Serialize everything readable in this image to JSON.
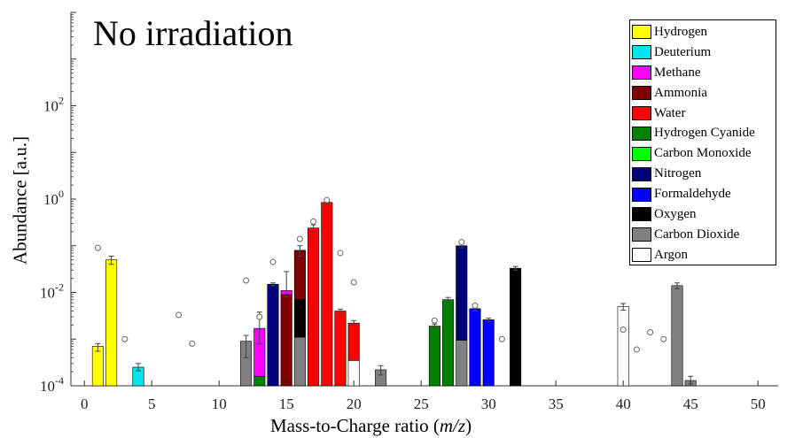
{
  "chart_data": {
    "type": "bar",
    "title": "No irradiation",
    "xlabel": "Mass-to-Charge ratio",
    "xlabel_unit": "m/z",
    "ylabel": "Abundance [a.u.]",
    "yscale": "log",
    "xlim": [
      -1,
      51.5
    ],
    "ylim": [
      0.0001,
      10000
    ],
    "xticks": [
      0,
      5,
      10,
      15,
      20,
      25,
      30,
      35,
      40,
      45,
      50
    ],
    "yticks": [
      {
        "value": 0.0001,
        "base": "10",
        "exp": "-4"
      },
      {
        "value": 0.01,
        "base": "10",
        "exp": "-2"
      },
      {
        "value": 1,
        "base": "10",
        "exp": "0"
      },
      {
        "value": 100,
        "base": "10",
        "exp": "2"
      }
    ],
    "legend_position": "top-right",
    "species": [
      {
        "name": "Hydrogen",
        "color": "#ffff00"
      },
      {
        "name": "Deuterium",
        "color": "#00e5ee"
      },
      {
        "name": "Methane",
        "color": "#ff00ff"
      },
      {
        "name": "Ammonia",
        "color": "#7f0000"
      },
      {
        "name": "Water",
        "color": "#ff0000"
      },
      {
        "name": "Hydrogen Cyanide",
        "color": "#007f00"
      },
      {
        "name": "Carbon Monoxide",
        "color": "#00ff00"
      },
      {
        "name": "Nitrogen",
        "color": "#00007f"
      },
      {
        "name": "Formaldehyde",
        "color": "#0000ff"
      },
      {
        "name": "Oxygen",
        "color": "#000000"
      },
      {
        "name": "Carbon Dioxide",
        "color": "#808080"
      },
      {
        "name": "Argon",
        "color": "#ffffff"
      }
    ],
    "bars": [
      {
        "x": 1,
        "segments": [
          {
            "species": "Hydrogen",
            "value": 0.0007
          }
        ],
        "err": [
          0.00055,
          0.0008
        ]
      },
      {
        "x": 2,
        "segments": [
          {
            "species": "Hydrogen",
            "value": 0.05
          }
        ],
        "err": [
          0.04,
          0.06
        ]
      },
      {
        "x": 4,
        "segments": [
          {
            "species": "Deuterium",
            "value": 0.00025
          }
        ],
        "err": [
          0.00021,
          0.0003
        ]
      },
      {
        "x": 12,
        "segments": [
          {
            "species": "Carbon Dioxide",
            "value": 0.0009
          }
        ],
        "err": [
          0.0004,
          0.0012
        ]
      },
      {
        "x": 13,
        "segments": [
          {
            "species": "Hydrogen Cyanide",
            "value": 0.00016
          },
          {
            "species": "Methane",
            "value": 0.0017
          }
        ],
        "err": [
          0.0008,
          0.0038
        ]
      },
      {
        "x": 14,
        "segments": [
          {
            "species": "Nitrogen",
            "value": 0.015
          }
        ],
        "err": [
          0.014,
          0.016
        ]
      },
      {
        "x": 15,
        "segments": [
          {
            "species": "Ammonia",
            "value": 0.009
          },
          {
            "species": "Methane",
            "value": 0.011
          }
        ],
        "err": [
          0.008,
          0.028
        ]
      },
      {
        "x": 16,
        "segments": [
          {
            "species": "Carbon Dioxide",
            "value": 0.0011
          },
          {
            "species": "Oxygen",
            "value": 0.007
          },
          {
            "species": "Ammonia",
            "value": 0.08
          }
        ],
        "err": [
          0.06,
          0.1
        ]
      },
      {
        "x": 17,
        "segments": [
          {
            "species": "Water",
            "value": 0.24
          }
        ],
        "err": [
          0.2,
          0.28
        ]
      },
      {
        "x": 18,
        "segments": [
          {
            "species": "Water",
            "value": 0.85
          }
        ],
        "err": [
          0.8,
          0.95
        ]
      },
      {
        "x": 19,
        "segments": [
          {
            "species": "Water",
            "value": 0.004
          }
        ],
        "err": [
          0.0036,
          0.0044
        ]
      },
      {
        "x": 20,
        "segments": [
          {
            "species": "Argon",
            "value": 0.00035
          },
          {
            "species": "Water",
            "value": 0.0022
          }
        ],
        "err": [
          0.002,
          0.0025
        ]
      },
      {
        "x": 22,
        "segments": [
          {
            "species": "Carbon Dioxide",
            "value": 0.00022
          }
        ],
        "err": [
          0.00017,
          0.00027
        ]
      },
      {
        "x": 26,
        "segments": [
          {
            "species": "Hydrogen Cyanide",
            "value": 0.0019
          }
        ],
        "err": [
          0.0017,
          0.0021
        ]
      },
      {
        "x": 27,
        "segments": [
          {
            "species": "Hydrogen Cyanide",
            "value": 0.007
          }
        ],
        "err": [
          0.0062,
          0.0078
        ]
      },
      {
        "x": 28,
        "segments": [
          {
            "species": "Carbon Dioxide",
            "value": 0.00095
          },
          {
            "species": "Nitrogen",
            "value": 0.1
          }
        ],
        "err": [
          0.09,
          0.11
        ]
      },
      {
        "x": 29,
        "segments": [
          {
            "species": "Formaldehyde",
            "value": 0.0045
          }
        ],
        "err": [
          0.004,
          0.005
        ]
      },
      {
        "x": 30,
        "segments": [
          {
            "species": "Formaldehyde",
            "value": 0.0026
          }
        ],
        "err": [
          0.0024,
          0.0028
        ]
      },
      {
        "x": 32,
        "segments": [
          {
            "species": "Oxygen",
            "value": 0.033
          }
        ],
        "err": [
          0.03,
          0.036
        ]
      },
      {
        "x": 40,
        "segments": [
          {
            "species": "Argon",
            "value": 0.005
          }
        ],
        "err": [
          0.0042,
          0.0058
        ]
      },
      {
        "x": 44,
        "segments": [
          {
            "species": "Carbon Dioxide",
            "value": 0.014
          }
        ],
        "err": [
          0.012,
          0.016
        ]
      },
      {
        "x": 45,
        "segments": [
          {
            "species": "Carbon Dioxide",
            "value": 0.00013
          }
        ],
        "err": [
          0.00011,
          0.00016
        ]
      }
    ],
    "markers": [
      {
        "x": 1,
        "y": 0.09
      },
      {
        "x": 3,
        "y": 0.001
      },
      {
        "x": 7,
        "y": 0.0033
      },
      {
        "x": 8,
        "y": 0.0008
      },
      {
        "x": 12,
        "y": 0.018
      },
      {
        "x": 13,
        "y": 0.003
      },
      {
        "x": 14,
        "y": 0.045
      },
      {
        "x": 16,
        "y": 0.14
      },
      {
        "x": 17,
        "y": 0.33
      },
      {
        "x": 18,
        "y": 0.95
      },
      {
        "x": 19,
        "y": 0.07
      },
      {
        "x": 20,
        "y": 0.0165
      },
      {
        "x": 26,
        "y": 0.0025
      },
      {
        "x": 28,
        "y": 0.12
      },
      {
        "x": 29,
        "y": 0.0052
      },
      {
        "x": 31,
        "y": 0.001
      },
      {
        "x": 40,
        "y": 0.0016
      },
      {
        "x": 41,
        "y": 0.0006
      },
      {
        "x": 42,
        "y": 0.0014
      },
      {
        "x": 43,
        "y": 0.001
      }
    ]
  }
}
